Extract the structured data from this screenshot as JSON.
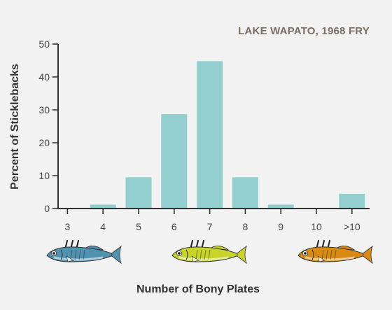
{
  "colors": {
    "background": "#f2f2f2",
    "bar": "#94cfcf",
    "axis": "#333333",
    "title": "#7a6f60",
    "fish_low": "#4f93b0",
    "fish_mid": "#c8d42a",
    "fish_high": "#d98a12"
  },
  "fish_icons": [
    "blue-stickleback-icon",
    "yellow-stickleback-icon",
    "orange-stickleback-icon"
  ],
  "chart_data": {
    "type": "bar",
    "title": "LAKE WAPATO, 1968 FRY",
    "xlabel": "Number of Bony Plates",
    "ylabel": "Percent of Sticklebacks",
    "categories": [
      "3",
      "4",
      "5",
      "6",
      "7",
      "8",
      "9",
      "10",
      ">10"
    ],
    "values": [
      0,
      1.2,
      9.5,
      28.7,
      44.8,
      9.5,
      1.2,
      0,
      4.5
    ],
    "ylim": [
      0,
      50
    ],
    "yticks": [
      0,
      10,
      20,
      30,
      40,
      50
    ],
    "grid": false,
    "legend": "none"
  }
}
